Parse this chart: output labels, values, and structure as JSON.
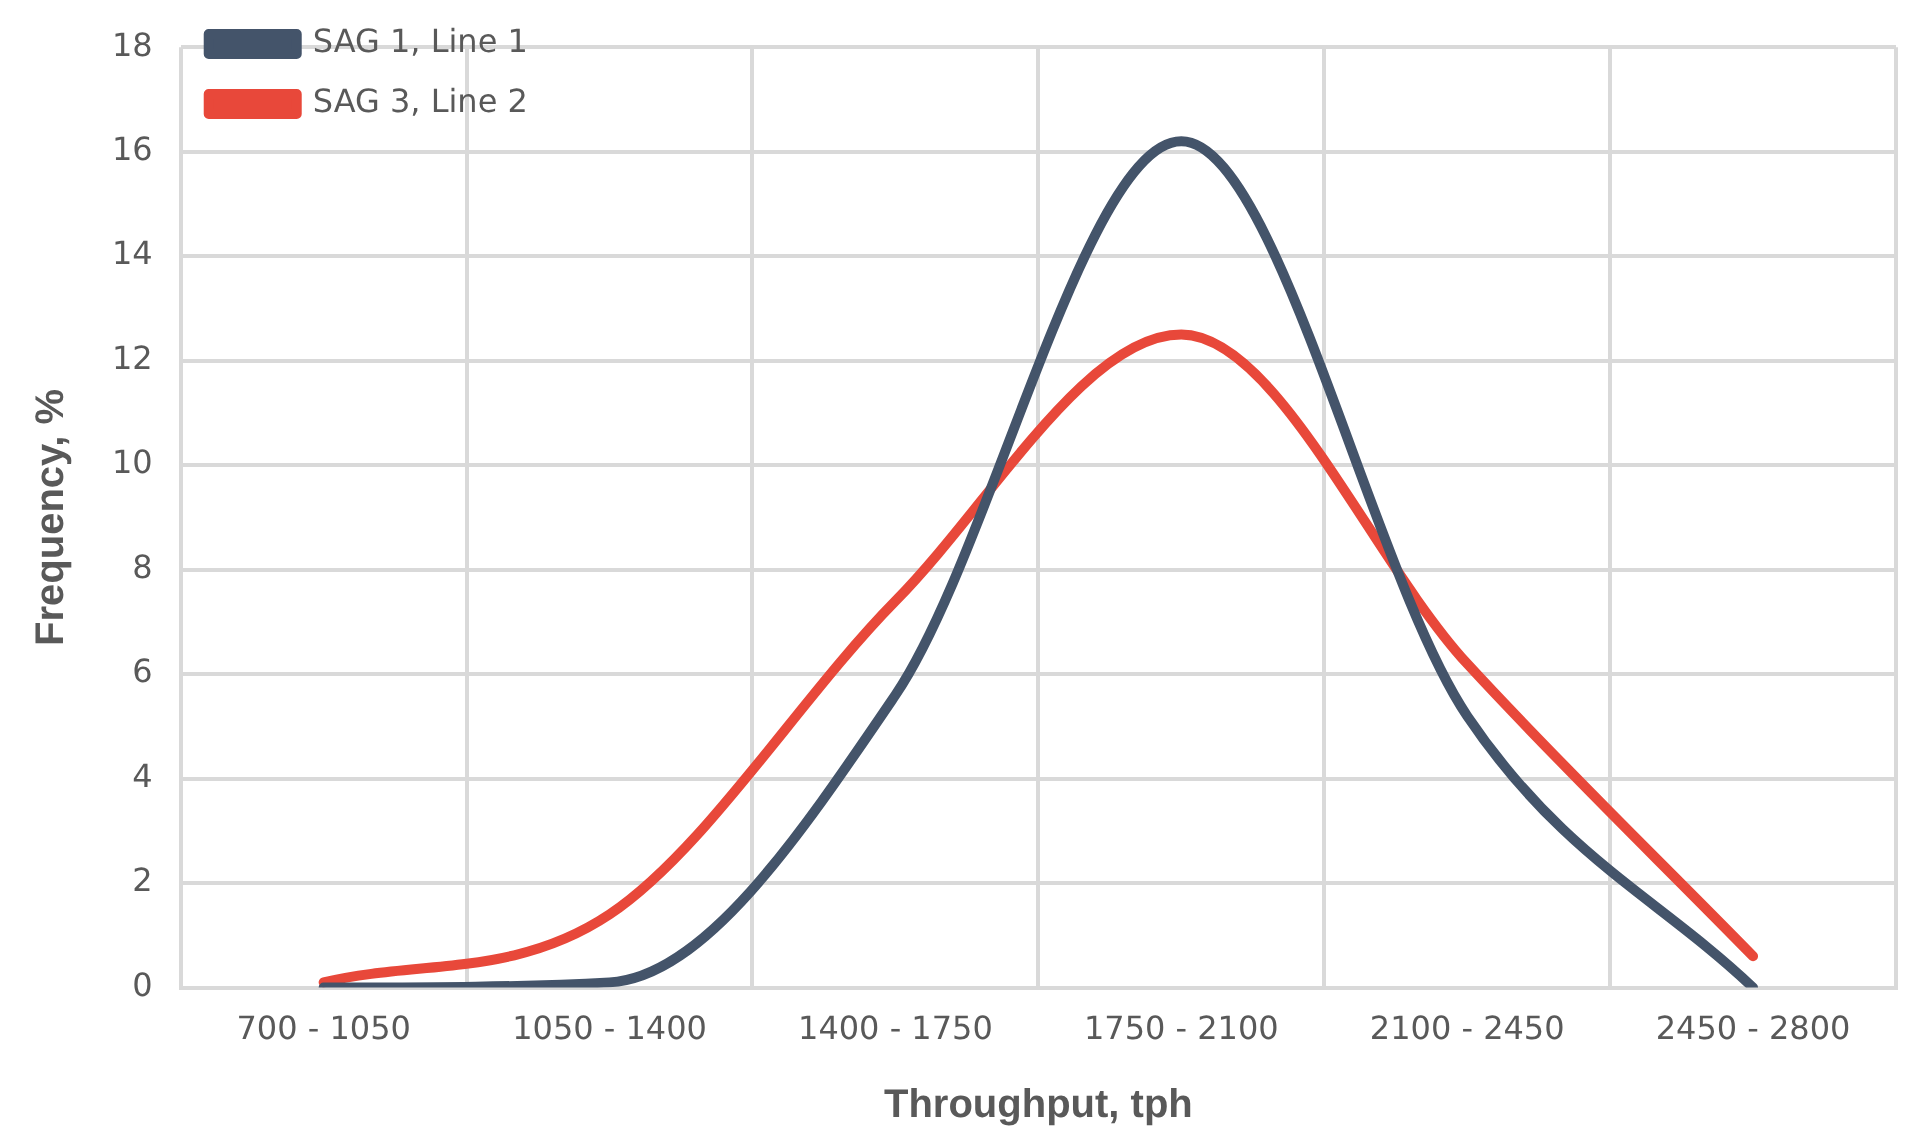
{
  "chart_data": {
    "type": "line",
    "xlabel": "Throughput, tph",
    "ylabel": "Frequency, %",
    "categories": [
      "700 - 1050",
      "1050 - 1400",
      "1400 - 1750",
      "1750 - 2100",
      "2100 - 2450",
      "2450 - 2800"
    ],
    "series": [
      {
        "name": "SAG 1, Line 1",
        "color": "#44546a",
        "values": [
          0,
          0.1,
          5.6,
          16.2,
          5.2,
          0
        ]
      },
      {
        "name": "SAG 3, Line 2",
        "color": "#e8483a",
        "values": [
          0.1,
          1.4,
          7.4,
          12.5,
          6.2,
          0.6
        ]
      }
    ],
    "ylim": [
      0,
      18
    ],
    "yticks": [
      0,
      2,
      4,
      6,
      8,
      10,
      12,
      14,
      16,
      18
    ],
    "grid": true,
    "legend": "top left",
    "marker": "none"
  }
}
